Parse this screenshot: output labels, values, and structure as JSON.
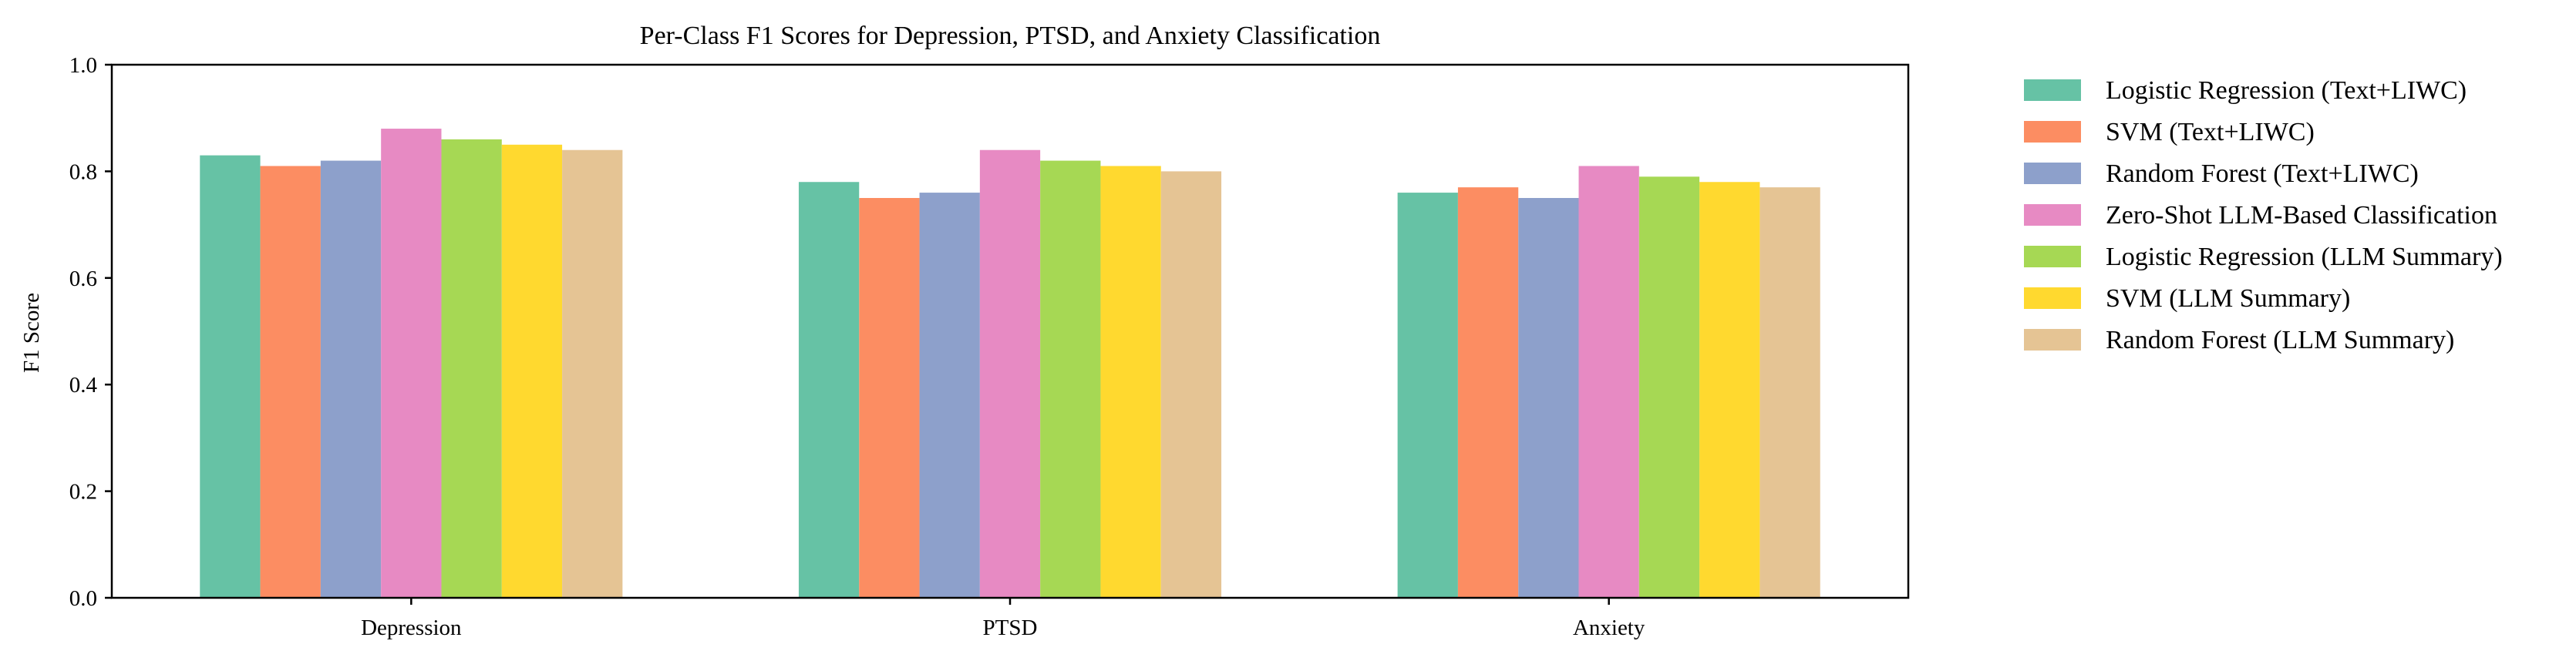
{
  "chart_data": {
    "type": "bar",
    "title": "Per-Class F1 Scores for Depression, PTSD, and Anxiety Classification",
    "xlabel": "",
    "ylabel": "F1 Score",
    "ylim": [
      0,
      1.0
    ],
    "yticks": [
      "0.0",
      "0.2",
      "0.4",
      "0.6",
      "0.8",
      "1.0"
    ],
    "ytick_values": [
      0.0,
      0.2,
      0.4,
      0.6,
      0.8,
      1.0
    ],
    "grid": false,
    "legend_position": "outside-right-top",
    "categories": [
      "Depression",
      "PTSD",
      "Anxiety"
    ],
    "series": [
      {
        "name": "Logistic Regression (Text+LIWC)",
        "color": "#66c2a5",
        "values": [
          0.83,
          0.78,
          0.76
        ]
      },
      {
        "name": "SVM (Text+LIWC)",
        "color": "#fc8d62",
        "values": [
          0.81,
          0.75,
          0.77
        ]
      },
      {
        "name": "Random Forest (Text+LIWC)",
        "color": "#8da0cb",
        "values": [
          0.82,
          0.76,
          0.75
        ]
      },
      {
        "name": "Zero-Shot LLM-Based Classification",
        "color": "#e78ac3",
        "values": [
          0.88,
          0.84,
          0.81
        ]
      },
      {
        "name": "Logistic Regression (LLM Summary)",
        "color": "#a6d854",
        "values": [
          0.86,
          0.82,
          0.79
        ]
      },
      {
        "name": "SVM (LLM Summary)",
        "color": "#ffd92f",
        "values": [
          0.85,
          0.81,
          0.78
        ]
      },
      {
        "name": "Random Forest (LLM Summary)",
        "color": "#e5c494",
        "values": [
          0.84,
          0.8,
          0.77
        ]
      }
    ]
  }
}
